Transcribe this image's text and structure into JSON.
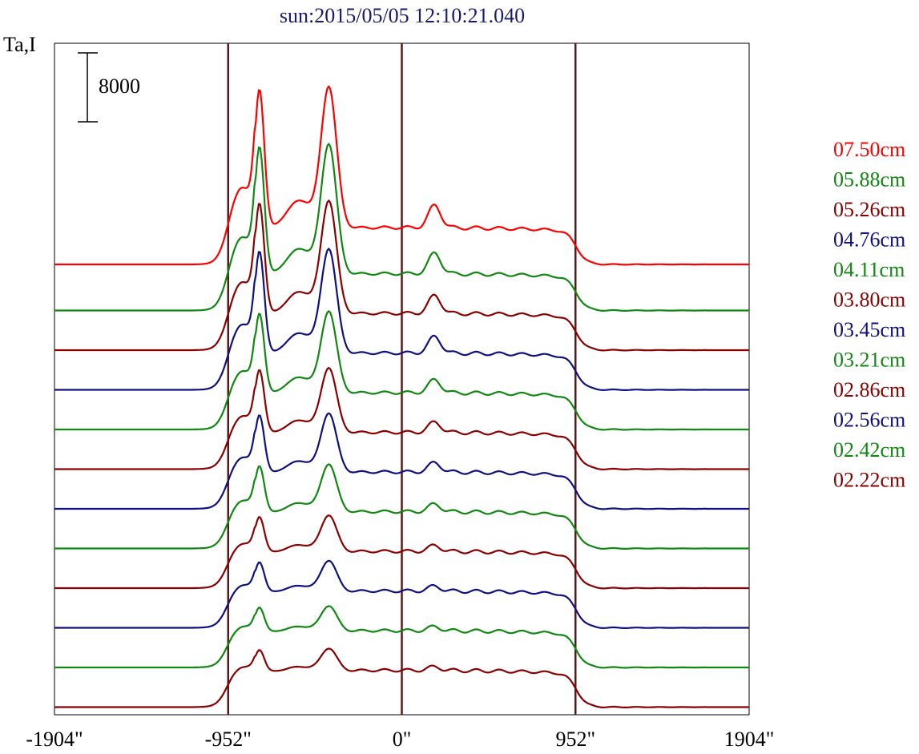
{
  "chart_data": {
    "type": "line",
    "title": "sun:2015/05/05 12:10:21.040",
    "ylabel": "Ta,I",
    "scale_bar_label": "8000",
    "x_ticks": [
      "-1904\"",
      "-952\"",
      "0\"",
      "952\"",
      "1904\""
    ],
    "x_tick_values": [
      -1904,
      -952,
      0,
      952,
      1904
    ],
    "xlim": [
      -1904,
      1904
    ],
    "vlines": [
      -952,
      0,
      952
    ],
    "vline_color": "#5a1a1a",
    "legend_location": "right",
    "series": [
      {
        "name": "07.50cm",
        "color": "#ff0000",
        "peak_scale": 1.0
      },
      {
        "name": "05.88cm",
        "color": "#118811",
        "peak_scale": 0.92
      },
      {
        "name": "05.26cm",
        "color": "#8b0000",
        "peak_scale": 0.8
      },
      {
        "name": "04.76cm",
        "color": "#101080",
        "peak_scale": 0.74
      },
      {
        "name": "04.11cm",
        "color": "#118811",
        "peak_scale": 0.58
      },
      {
        "name": "03.80cm",
        "color": "#8b0000",
        "peak_scale": 0.46
      },
      {
        "name": "03.45cm",
        "color": "#101080",
        "peak_scale": 0.42
      },
      {
        "name": "03.21cm",
        "color": "#118811",
        "peak_scale": 0.34
      },
      {
        "name": "02.86cm",
        "color": "#8b0000",
        "peak_scale": 0.26
      },
      {
        "name": "02.56cm",
        "color": "#101080",
        "peak_scale": 0.22
      },
      {
        "name": "02.42cm",
        "color": "#118811",
        "peak_scale": 0.18
      },
      {
        "name": "02.22cm",
        "color": "#8b0000",
        "peak_scale": 0.16
      }
    ]
  }
}
